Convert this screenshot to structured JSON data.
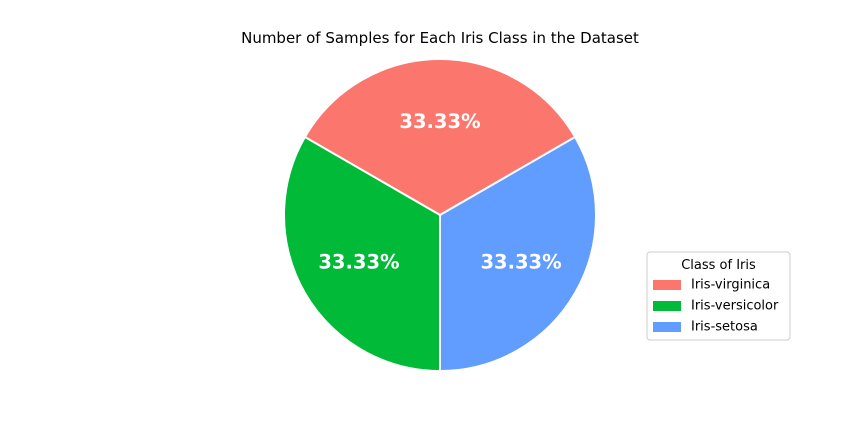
{
  "chart_data": {
    "type": "pie",
    "title": "Number of Samples for Each Iris Class in the Dataset",
    "categories": [
      "Iris-virginica",
      "Iris-versicolor",
      "Iris-setosa"
    ],
    "values": [
      50,
      50,
      50
    ],
    "labels": [
      "33.33%",
      "33.33%",
      "33.33%"
    ],
    "colors": [
      "#fb766d",
      "#00ba38",
      "#619cff"
    ],
    "start_angle_deg": 30,
    "legend": {
      "title": "Class of Iris",
      "placement": "center-right",
      "entries": [
        "Iris-virginica",
        "Iris-versicolor",
        "Iris-setosa"
      ]
    }
  }
}
